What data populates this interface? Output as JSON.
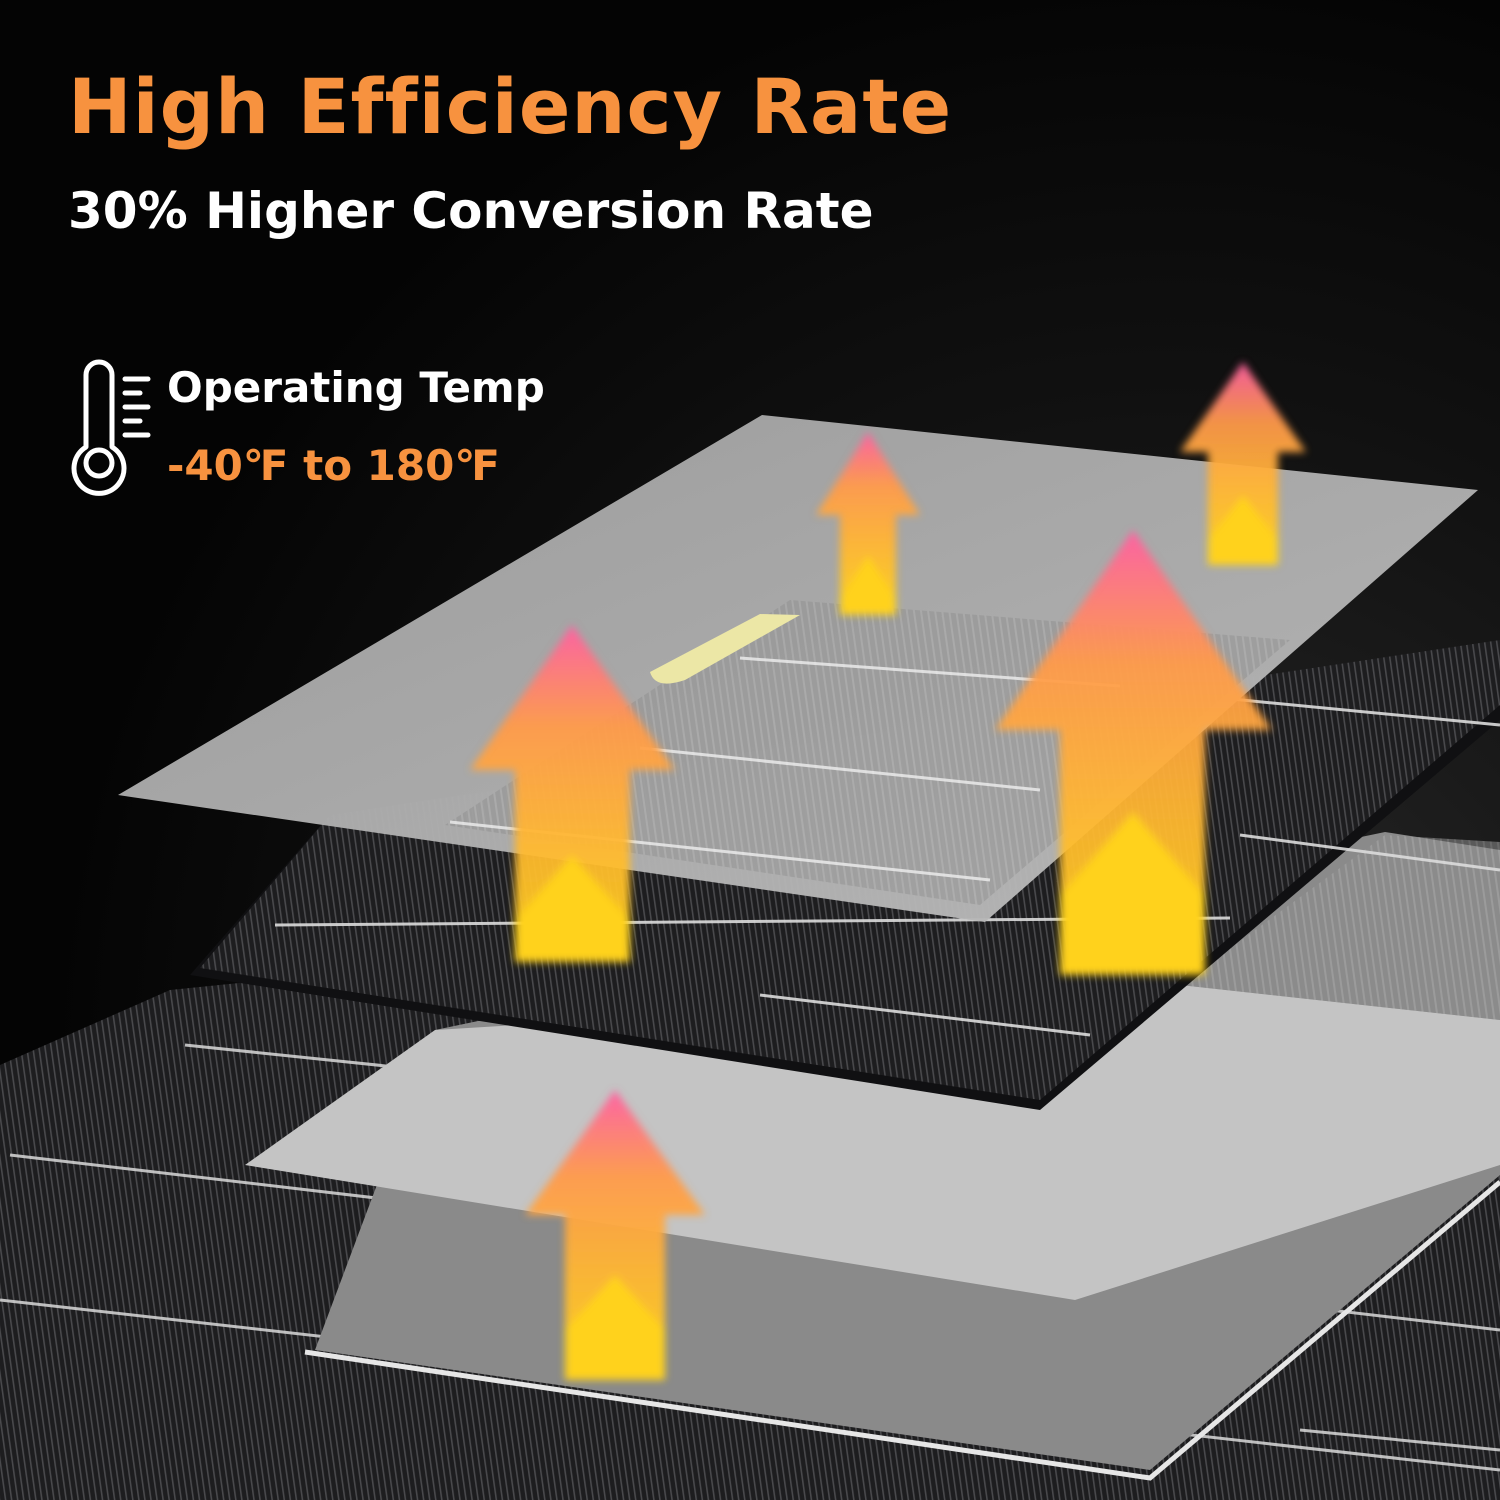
{
  "headline": "High Efficiency Rate",
  "subheadline": "30% Higher Conversion Rate",
  "operating_temp": {
    "label": "Operating Temp",
    "range": "-40℉ to 180℉",
    "icon": "thermometer-icon"
  },
  "colors": {
    "background": "#060606",
    "accent_orange": "#f7923f",
    "text_white": "#ffffff",
    "arrow_yellow": "#ffc81e",
    "arrow_orange": "#ff9a4a",
    "arrow_pink": "#ff6ea0",
    "glass_layer": "#b3b3b3",
    "solar_cell": "#202022",
    "backsheet": "#8a8a8a"
  },
  "illustration": {
    "name": "solar-panel-layers",
    "layers": [
      "top-glass-layer",
      "solar-cell-layer",
      "backsheet-layer",
      "base-cell-layer"
    ],
    "heat_arrows": 5
  }
}
